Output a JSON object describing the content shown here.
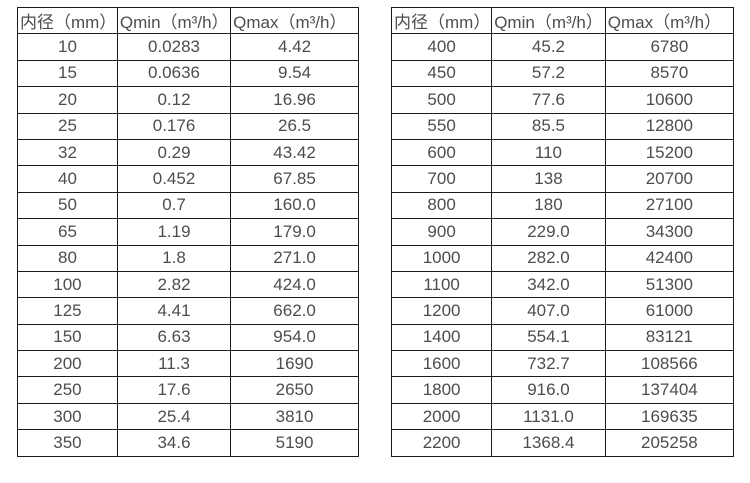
{
  "page": {
    "background_color": "#ffffff",
    "border_color": "#1c1c1c",
    "text_color": "#4d4d4d"
  },
  "tables": [
    {
      "name": "flow-rate-table-small-diameters",
      "headers": [
        "内径（mm）",
        "Qmin（m³/h）",
        "Qmax（m³/h）"
      ],
      "rows": [
        [
          "10",
          "0.0283",
          "4.42"
        ],
        [
          "15",
          "0.0636",
          "9.54"
        ],
        [
          "20",
          "0.12",
          "16.96"
        ],
        [
          "25",
          "0.176",
          "26.5"
        ],
        [
          "32",
          "0.29",
          "43.42"
        ],
        [
          "40",
          "0.452",
          "67.85"
        ],
        [
          "50",
          "0.7",
          "160.0"
        ],
        [
          "65",
          "1.19",
          "179.0"
        ],
        [
          "80",
          "1.8",
          "271.0"
        ],
        [
          "100",
          "2.82",
          "424.0"
        ],
        [
          "125",
          "4.41",
          "662.0"
        ],
        [
          "150",
          "6.63",
          "954.0"
        ],
        [
          "200",
          "11.3",
          "1690"
        ],
        [
          "250",
          "17.6",
          "2650"
        ],
        [
          "300",
          "25.4",
          "3810"
        ],
        [
          "350",
          "34.6",
          "5190"
        ]
      ]
    },
    {
      "name": "flow-rate-table-large-diameters",
      "headers": [
        "内径（mm）",
        "Qmin（m³/h）",
        "Qmax（m³/h）"
      ],
      "rows": [
        [
          "400",
          "45.2",
          "6780"
        ],
        [
          "450",
          "57.2",
          "8570"
        ],
        [
          "500",
          "77.6",
          "10600"
        ],
        [
          "550",
          "85.5",
          "12800"
        ],
        [
          "600",
          "110",
          "15200"
        ],
        [
          "700",
          "138",
          "20700"
        ],
        [
          "800",
          "180",
          "27100"
        ],
        [
          "900",
          "229.0",
          "34300"
        ],
        [
          "1000",
          "282.0",
          "42400"
        ],
        [
          "1100",
          "342.0",
          "51300"
        ],
        [
          "1200",
          "407.0",
          "61000"
        ],
        [
          "1400",
          "554.1",
          "83121"
        ],
        [
          "1600",
          "732.7",
          "108566"
        ],
        [
          "1800",
          "916.0",
          "137404"
        ],
        [
          "2000",
          "1131.0",
          "169635"
        ],
        [
          "2200",
          "1368.4",
          "205258"
        ]
      ]
    }
  ]
}
